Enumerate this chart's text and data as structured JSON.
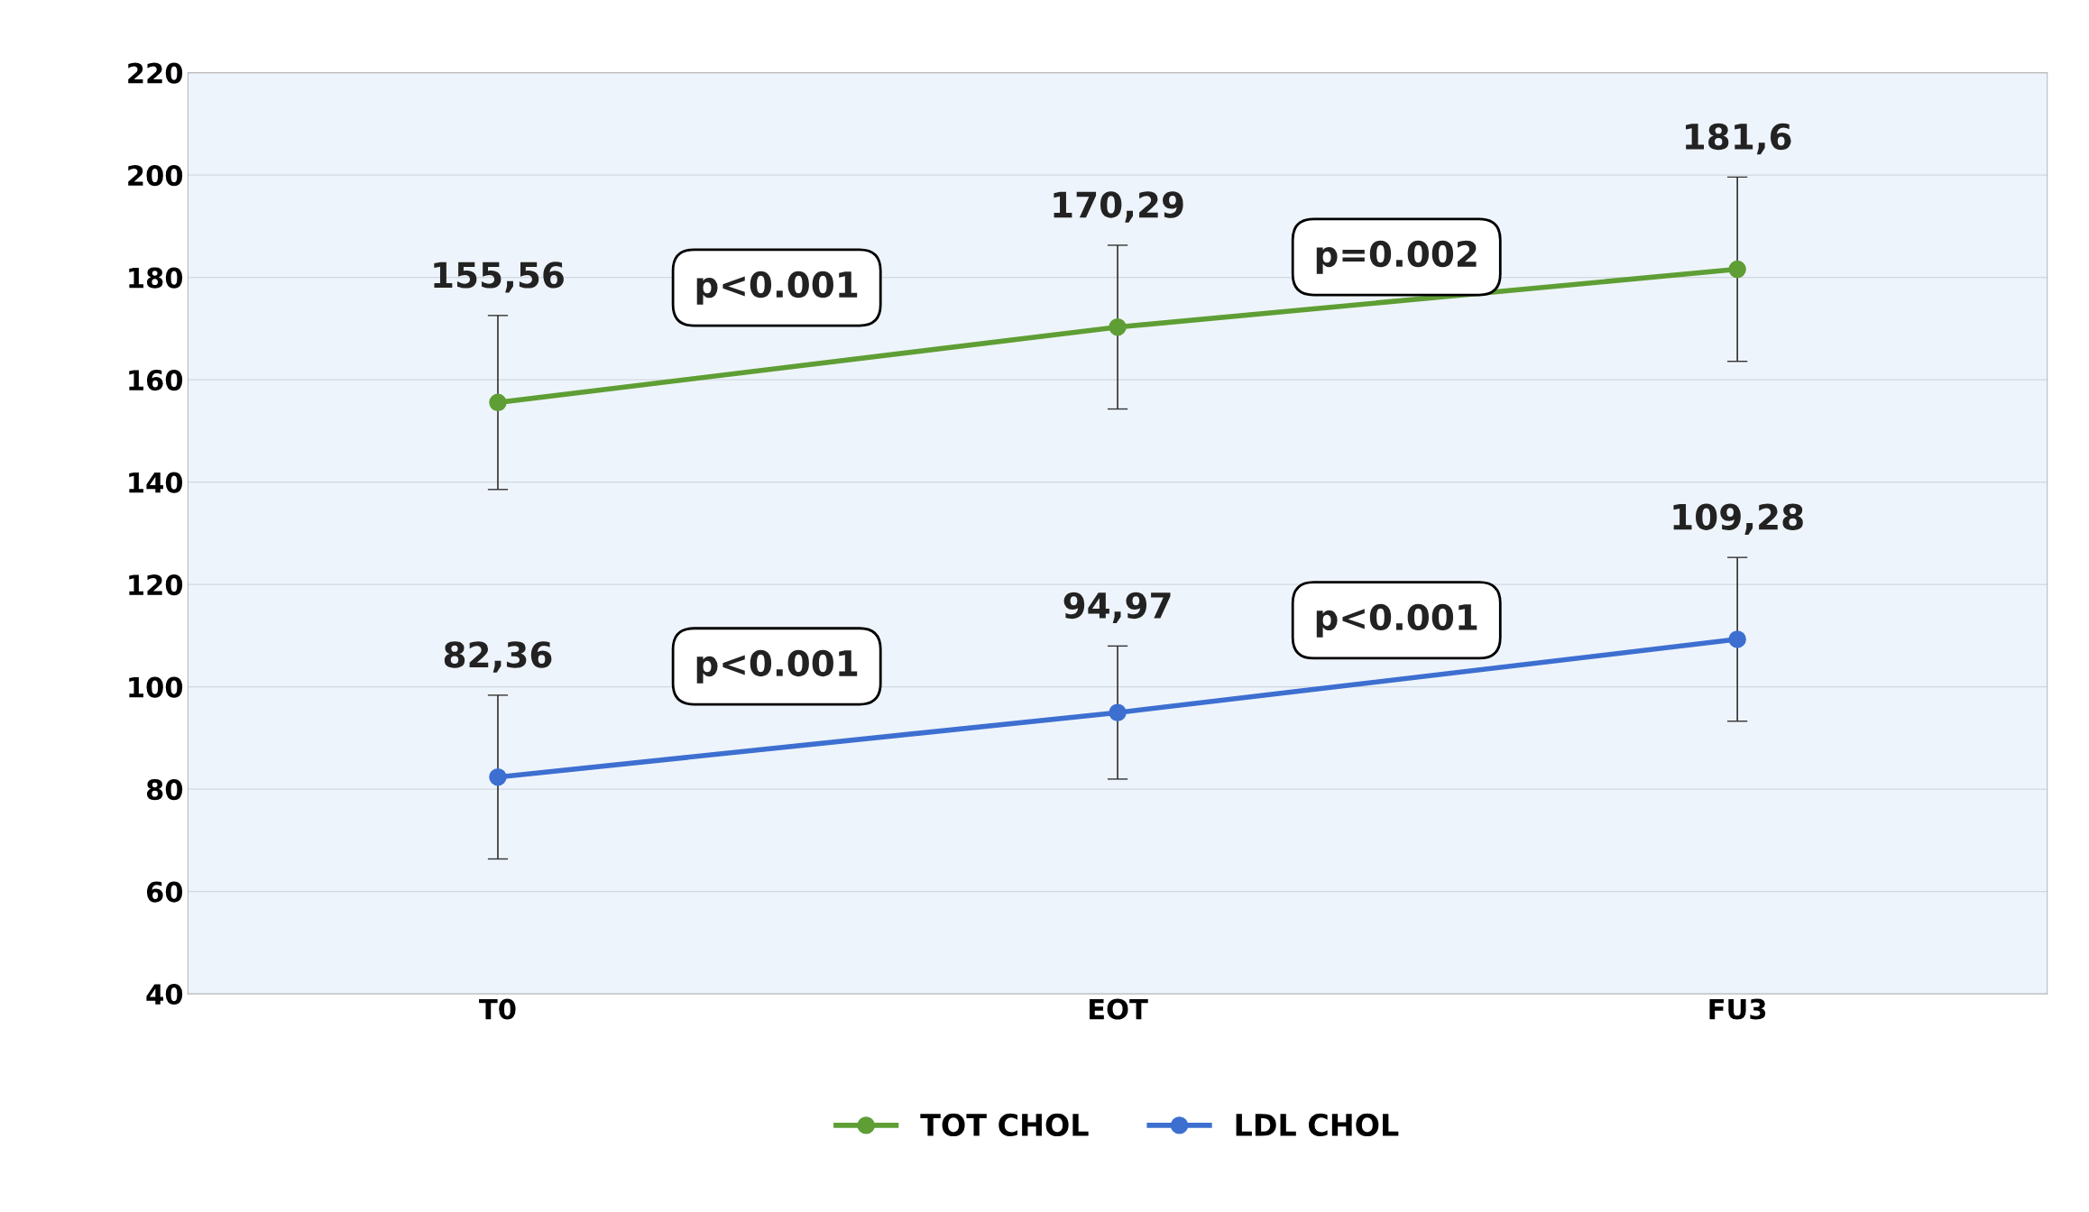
{
  "chart_data": {
    "type": "line",
    "categories": [
      "T0",
      "EOT",
      "FU3"
    ],
    "series": [
      {
        "name": "TOT CHOL",
        "color": "#5e9e34",
        "values": [
          155.56,
          170.29,
          181.6
        ],
        "errors": [
          17,
          16,
          18
        ],
        "value_labels": [
          "155,56",
          "170,29",
          "181,6"
        ]
      },
      {
        "name": "LDL CHOL",
        "color": "#3d6fd1",
        "values": [
          82.36,
          94.97,
          109.28
        ],
        "errors": [
          16,
          13,
          16
        ],
        "value_labels": [
          "82,36",
          "94,97",
          "109,28"
        ]
      }
    ],
    "ylim": [
      40,
      220
    ],
    "yticks": [
      40,
      60,
      80,
      100,
      120,
      140,
      160,
      180,
      200,
      220
    ],
    "annotations": [
      "p<0.001",
      "p=0.002",
      "p<0.001",
      "p<0.001"
    ],
    "grid": "y",
    "legend": "bottom",
    "marker": "circle",
    "line_style": "solid"
  }
}
